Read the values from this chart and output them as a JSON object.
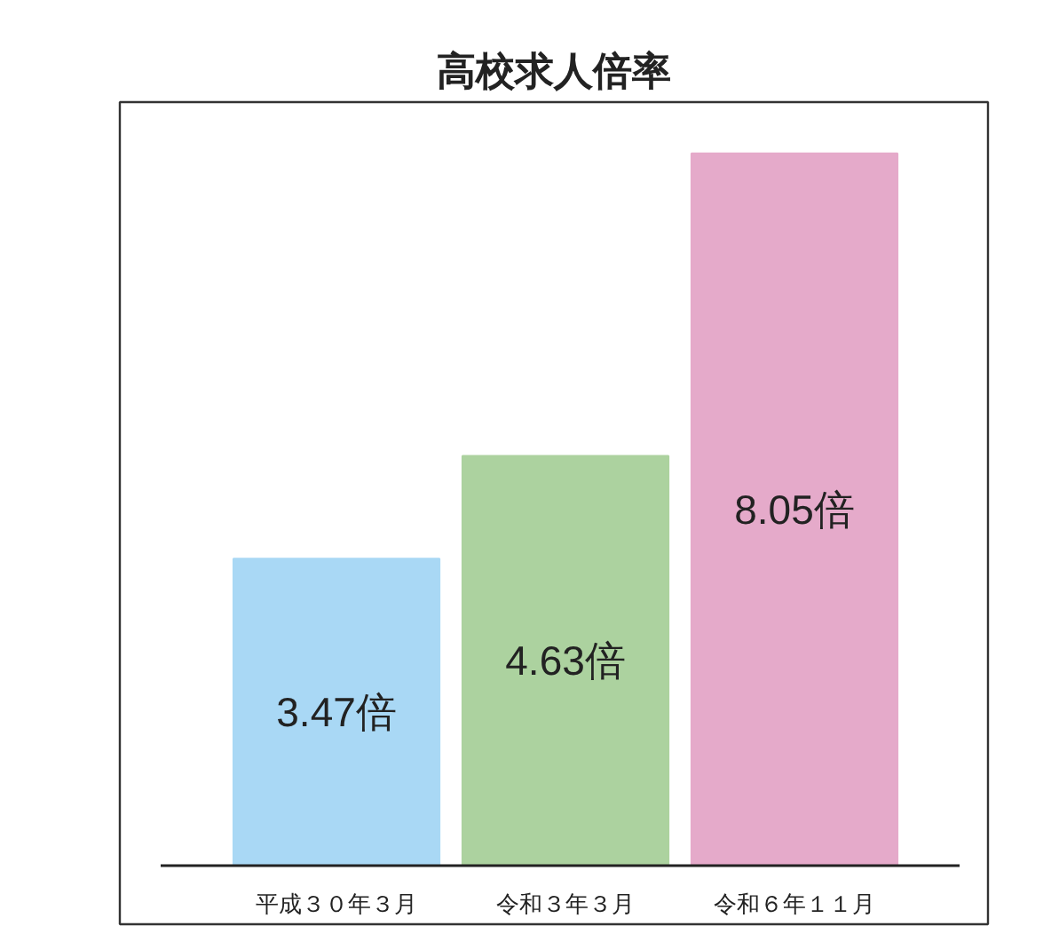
{
  "chart_data": {
    "type": "bar",
    "title": "高校求人倍率",
    "categories": [
      "平成３０年３月",
      "令和３年３月",
      "令和６年１１月"
    ],
    "values": [
      3.47,
      4.63,
      8.05
    ],
    "colors": [
      "#a9d8f5",
      "#acd29f",
      "#e5aaca"
    ],
    "value_labels": [
      "3.47倍",
      "4.63倍",
      "8.05倍"
    ],
    "grid": false
  }
}
